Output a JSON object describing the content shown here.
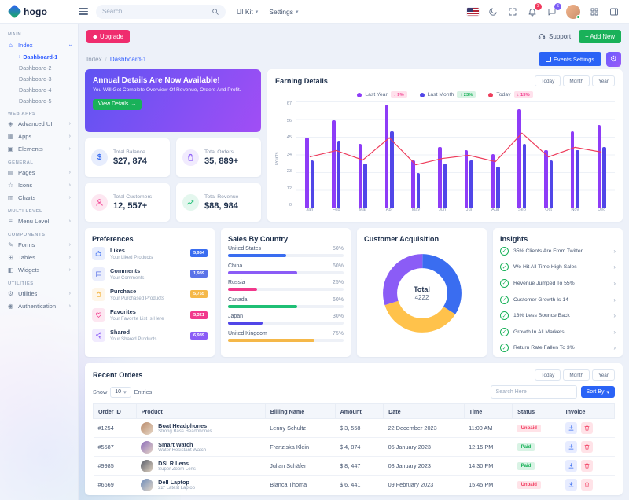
{
  "brand": {
    "name": "hogo"
  },
  "colors": {
    "primary": "#2f5cff",
    "purple": "#8b5cf6",
    "pink": "#f1388b",
    "green": "#19b159",
    "yellow": "#f5b849",
    "red": "#f13a5e"
  },
  "header": {
    "search_placeholder": "Search...",
    "menus": [
      {
        "label": "UI Kit"
      },
      {
        "label": "Settings"
      }
    ],
    "notification_count": "3",
    "message_count": "5"
  },
  "toolbar": {
    "upgrade_label": "Upgrade",
    "support_label": "Support",
    "add_new_label": "+ Add New"
  },
  "breadcrumb": {
    "parent": "Index",
    "separator": "/",
    "current": "Dashboard-1",
    "events_button": "Events Settings"
  },
  "sidebar": {
    "sections": [
      {
        "label": "MAIN",
        "items": [
          {
            "label": "Index",
            "icon": "home-icon",
            "expanded": true,
            "children": [
              "Dashboard-1",
              "Dashboard-2",
              "Dashboard-3",
              "Dashboard-4",
              "Dashboard-5"
            ],
            "active_child": "Dashboard-1"
          }
        ]
      },
      {
        "label": "WEB APPS",
        "items": [
          {
            "label": "Advanced UI",
            "icon": "layers-icon"
          },
          {
            "label": "Apps",
            "icon": "apps-icon"
          },
          {
            "label": "Elements",
            "icon": "box-icon"
          }
        ]
      },
      {
        "label": "GENERAL",
        "items": [
          {
            "label": "Pages",
            "icon": "pages-icon"
          },
          {
            "label": "Icons",
            "icon": "star-icon"
          },
          {
            "label": "Charts",
            "icon": "chart-icon"
          }
        ]
      },
      {
        "label": "MULTI LEVEL",
        "items": [
          {
            "label": "Menu Level",
            "icon": "menu-icon"
          }
        ]
      },
      {
        "label": "COMPONENTS",
        "items": [
          {
            "label": "Forms",
            "icon": "form-icon"
          },
          {
            "label": "Tables",
            "icon": "table-icon"
          },
          {
            "label": "Widgets",
            "icon": "widget-icon"
          }
        ]
      },
      {
        "label": "UTILITIES",
        "items": [
          {
            "label": "Utilities",
            "icon": "tools-icon"
          },
          {
            "label": "Authentication",
            "icon": "lock-icon"
          }
        ]
      }
    ]
  },
  "banner": {
    "title": "Annual Details Are Now Available!",
    "subtitle": "You Will Get Complete Overview Of Revenue, Orders And Profit.",
    "button": "View Details"
  },
  "stats": [
    {
      "label": "Total Balance",
      "value": "$27, 874",
      "icon": "dollar-icon",
      "color": "#3a6df0"
    },
    {
      "label": "Total Orders",
      "value": "35, 889+",
      "icon": "bag-icon",
      "color": "#8b5cf6"
    },
    {
      "label": "Total Customers",
      "value": "12, 557+",
      "icon": "user-icon",
      "color": "#f1388b"
    },
    {
      "label": "Total Revenue",
      "value": "$88, 984",
      "icon": "trend-icon",
      "color": "#1fbf75"
    }
  ],
  "chart_data": [
    {
      "id": "earning-details",
      "type": "bar",
      "title": "Earning Details",
      "range_buttons": [
        "Today",
        "Month",
        "Year"
      ],
      "categories": [
        "Jan",
        "Feb",
        "Mar",
        "Apr",
        "May",
        "Jun",
        "Jul",
        "Aug",
        "Sep",
        "Oct",
        "Nov",
        "Dec"
      ],
      "series": [
        {
          "name": "Last Year",
          "color": "#8e3cf7",
          "values": [
            44,
            55,
            40,
            65,
            30,
            38,
            36,
            34,
            62,
            36,
            48,
            52
          ]
        },
        {
          "name": "Last Month",
          "color": "#5146e8",
          "values": [
            30,
            42,
            28,
            48,
            22,
            28,
            30,
            26,
            40,
            30,
            36,
            38
          ]
        }
      ],
      "line_series": {
        "name": "Today",
        "color": "#ee3d5c",
        "values": [
          32,
          36,
          30,
          44,
          27,
          31,
          33,
          29,
          47,
          32,
          38,
          35
        ]
      },
      "legend_badges": [
        {
          "text": "↓ 9%",
          "type": "down"
        },
        {
          "text": "↑ 23%",
          "type": "up"
        },
        {
          "text": "↓ 15%",
          "type": "down"
        }
      ],
      "xlabel": "",
      "ylabel": "Points",
      "yticks": [
        0,
        12,
        23,
        34,
        45,
        56,
        67
      ],
      "ylim": [
        0,
        67
      ],
      "grid": true,
      "legend_position": "top"
    },
    {
      "id": "customer-acquisition",
      "type": "donut",
      "title": "Customer Acquisition",
      "center_label": "Total",
      "center_value": "4222",
      "segments": [
        {
          "name": "segment-blue",
          "value": 34,
          "color": "#3a6df0"
        },
        {
          "name": "segment-yellow",
          "value": 36,
          "color": "#ffc24b"
        },
        {
          "name": "segment-purple",
          "value": 30,
          "color": "#8b5cf6"
        }
      ]
    }
  ],
  "preferences": {
    "title": "Preferences",
    "rows": [
      {
        "title": "Likes",
        "subtitle": "Your Liked Products",
        "badge": "5,954",
        "color": "#3a6df0",
        "icon": "thumbs-up-icon"
      },
      {
        "title": "Comments",
        "subtitle": "Your Comments",
        "badge": "1,989",
        "color": "#5b73e8",
        "icon": "comment-icon"
      },
      {
        "title": "Purchase",
        "subtitle": "Your Purchased Products",
        "badge": "5,765",
        "color": "#f5b849",
        "icon": "bag-icon"
      },
      {
        "title": "Favorites",
        "subtitle": "Your Favorite List Is Here",
        "badge": "5,321",
        "color": "#f1388b",
        "icon": "heart-icon"
      },
      {
        "title": "Shared",
        "subtitle": "Your Shared Products",
        "badge": "6,989",
        "color": "#8b5cf6",
        "icon": "share-icon"
      }
    ]
  },
  "sales_by_country": {
    "title": "Sales By Country",
    "rows": [
      {
        "country": "United States",
        "percent": 50,
        "percent_label": "50%",
        "color": "#3a6df0"
      },
      {
        "country": "China",
        "percent": 60,
        "percent_label": "60%",
        "color": "#8b5cf6"
      },
      {
        "country": "Russia",
        "percent": 25,
        "percent_label": "25%",
        "color": "#f1388b"
      },
      {
        "country": "Canada",
        "percent": 60,
        "percent_label": "60%",
        "color": "#1fbf75"
      },
      {
        "country": "Japan",
        "percent": 30,
        "percent_label": "30%",
        "color": "#5146e8"
      },
      {
        "country": "United Kingdom",
        "percent": 75,
        "percent_label": "75%",
        "color": "#f5b849"
      }
    ]
  },
  "insights": {
    "title": "Insights",
    "items": [
      "35% Clients Are From Twitter",
      "We Hit All Time High Sales",
      "Revenue Jumped To 55%",
      "Customer Growth Is 14",
      "13% Less Bounce Back",
      "Growth In All Markets",
      "Return Rate Fallen To 3%"
    ]
  },
  "recent_orders": {
    "title": "Recent Orders",
    "range_buttons": [
      "Today",
      "Month",
      "Year"
    ],
    "show_label": "Show",
    "page_size": "10",
    "entries_label": "Entries",
    "search_placeholder": "Search Here",
    "sort_label": "Sort By",
    "columns": [
      "Order ID",
      "Product",
      "Billing Name",
      "Amount",
      "Date",
      "Time",
      "Status",
      "Invoice"
    ],
    "rows": [
      {
        "id": "#1254",
        "product": "Boat Headphones",
        "product_sub": "Strong Bass Headphones",
        "name": "Lenny Schultz",
        "amount": "$ 3, 558",
        "date": "22 December 2023",
        "time": "11:00 AM",
        "status": "Unpaid",
        "avatar_color": "#b98a6a"
      },
      {
        "id": "#5587",
        "product": "Smart Watch",
        "product_sub": "Water Resistant Watch",
        "name": "Franziska Klein",
        "amount": "$ 4, 874",
        "date": "05 January 2023",
        "time": "12:15 PM",
        "status": "Paid",
        "avatar_color": "#8a6ab9"
      },
      {
        "id": "#9985",
        "product": "DSLR Lens",
        "product_sub": "Super Zoom Lens",
        "name": "Julian Schäfer",
        "amount": "$ 8, 447",
        "date": "08 January 2023",
        "time": "14:30 PM",
        "status": "Paid",
        "avatar_color": "#555b66"
      },
      {
        "id": "#6669",
        "product": "Dell Laptop",
        "product_sub": "22\" Latest Laptop",
        "name": "Bianca Thoma",
        "amount": "$ 6, 441",
        "date": "09 February 2023",
        "time": "15:45 PM",
        "status": "Unpaid",
        "avatar_color": "#6a89b9"
      }
    ]
  }
}
